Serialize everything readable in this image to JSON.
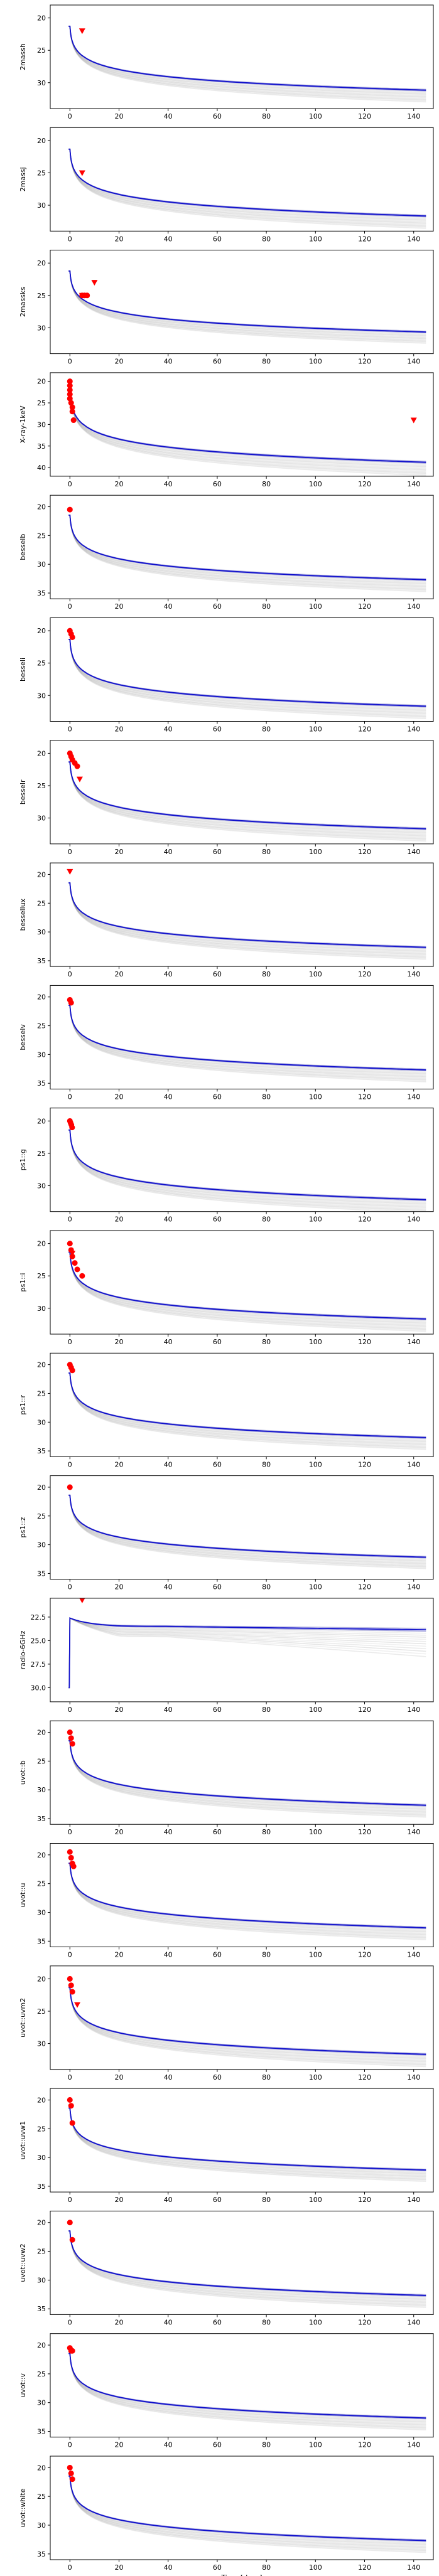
{
  "colors": {
    "main": "#1010cc",
    "band": "#7a7ad8",
    "sample": "#808080",
    "obs": "#ff0000"
  },
  "chart_data": [
    {
      "type": "line",
      "ylabel": "2massh",
      "ylim": [
        34,
        18
      ],
      "yticks": [
        20,
        25,
        30
      ],
      "xlim": [
        -8,
        148
      ],
      "xticks": [
        0,
        20,
        40,
        60,
        80,
        100,
        120,
        140
      ],
      "xlabel": "",
      "model": {
        "peak": 20.0,
        "late": 31.0,
        "ln": "log"
      },
      "obs": [
        {
          "x": 5,
          "y": 22,
          "marker": "v"
        }
      ]
    },
    {
      "type": "line",
      "ylabel": "2massj",
      "ylim": [
        34,
        18
      ],
      "yticks": [
        20,
        25,
        30
      ],
      "xlim": [
        -8,
        148
      ],
      "xticks": [
        0,
        20,
        40,
        60,
        80,
        100,
        120,
        140
      ],
      "xlabel": "",
      "model": {
        "peak": 20.0,
        "late": 31.5,
        "ln": "log"
      },
      "obs": [
        {
          "x": 5,
          "y": 25,
          "marker": "v"
        }
      ]
    },
    {
      "type": "line",
      "ylabel": "2massks",
      "ylim": [
        34,
        18
      ],
      "yticks": [
        20,
        25,
        30
      ],
      "xlim": [
        -8,
        148
      ],
      "xticks": [
        0,
        20,
        40,
        60,
        80,
        100,
        120,
        140
      ],
      "xlabel": "",
      "model": {
        "peak": 20.0,
        "late": 30.5,
        "ln": "log"
      },
      "obs": [
        {
          "x": 5,
          "y": 25,
          "marker": "o"
        },
        {
          "x": 6,
          "y": 25,
          "marker": "o"
        },
        {
          "x": 7,
          "y": 25,
          "marker": "o"
        },
        {
          "x": 10,
          "y": 23,
          "marker": "v"
        },
        {
          "x": 5,
          "y": 25,
          "marker": "v"
        }
      ]
    },
    {
      "type": "line",
      "ylabel": "X-ray-1keV",
      "ylim": [
        42,
        18
      ],
      "yticks": [
        20,
        25,
        30,
        35,
        40
      ],
      "xlim": [
        -8,
        148
      ],
      "xticks": [
        0,
        20,
        40,
        60,
        80,
        100,
        120,
        140
      ],
      "xlabel": "",
      "model": {
        "peak": 20.0,
        "late": 38.5,
        "ln": "log"
      },
      "obs": [
        {
          "x": 0,
          "y": 20,
          "marker": "o"
        },
        {
          "x": 0,
          "y": 21,
          "marker": "o"
        },
        {
          "x": 0,
          "y": 22,
          "marker": "o"
        },
        {
          "x": 0,
          "y": 23,
          "marker": "o"
        },
        {
          "x": 0,
          "y": 24,
          "marker": "o"
        },
        {
          "x": 0.5,
          "y": 25,
          "marker": "o"
        },
        {
          "x": 1,
          "y": 26,
          "marker": "o"
        },
        {
          "x": 1,
          "y": 27,
          "marker": "o"
        },
        {
          "x": 1.5,
          "y": 29,
          "marker": "o"
        },
        {
          "x": 140,
          "y": 29,
          "marker": "v"
        }
      ]
    },
    {
      "type": "line",
      "ylabel": "besselb",
      "ylim": [
        36,
        18
      ],
      "yticks": [
        20,
        25,
        30,
        35
      ],
      "xlim": [
        -8,
        148
      ],
      "xticks": [
        0,
        20,
        40,
        60,
        80,
        100,
        120,
        140
      ],
      "xlabel": "",
      "model": {
        "peak": 20.0,
        "late": 32.5,
        "ln": "log"
      },
      "obs": [
        {
          "x": 0,
          "y": 20.5,
          "marker": "o"
        }
      ]
    },
    {
      "type": "line",
      "ylabel": "besseli",
      "ylim": [
        34,
        18
      ],
      "yticks": [
        20,
        25,
        30
      ],
      "xlim": [
        -8,
        148
      ],
      "xticks": [
        0,
        20,
        40,
        60,
        80,
        100,
        120,
        140
      ],
      "xlabel": "",
      "model": {
        "peak": 20.0,
        "late": 31.5,
        "ln": "log"
      },
      "obs": [
        {
          "x": 0,
          "y": 20,
          "marker": "o"
        },
        {
          "x": 0.5,
          "y": 20.5,
          "marker": "o"
        },
        {
          "x": 1,
          "y": 21,
          "marker": "o"
        }
      ]
    },
    {
      "type": "line",
      "ylabel": "besselr",
      "ylim": [
        34,
        18
      ],
      "yticks": [
        20,
        25,
        30
      ],
      "xlim": [
        -8,
        148
      ],
      "xticks": [
        0,
        20,
        40,
        60,
        80,
        100,
        120,
        140
      ],
      "xlabel": "",
      "model": {
        "peak": 20.0,
        "late": 31.5,
        "ln": "log"
      },
      "obs": [
        {
          "x": 0,
          "y": 20,
          "marker": "o"
        },
        {
          "x": 0.5,
          "y": 20.5,
          "marker": "o"
        },
        {
          "x": 1,
          "y": 21,
          "marker": "o"
        },
        {
          "x": 2,
          "y": 21.5,
          "marker": "o"
        },
        {
          "x": 3,
          "y": 22,
          "marker": "o"
        },
        {
          "x": 4,
          "y": 24,
          "marker": "v"
        }
      ]
    },
    {
      "type": "line",
      "ylabel": "bessellux",
      "ylim": [
        36,
        18
      ],
      "yticks": [
        20,
        25,
        30,
        35
      ],
      "xlim": [
        -8,
        148
      ],
      "xticks": [
        0,
        20,
        40,
        60,
        80,
        100,
        120,
        140
      ],
      "xlabel": "",
      "model": {
        "peak": 20.0,
        "late": 32.5,
        "ln": "log"
      },
      "obs": [
        {
          "x": 0,
          "y": 19.5,
          "marker": "v"
        }
      ]
    },
    {
      "type": "line",
      "ylabel": "besselv",
      "ylim": [
        36,
        18
      ],
      "yticks": [
        20,
        25,
        30,
        35
      ],
      "xlim": [
        -8,
        148
      ],
      "xticks": [
        0,
        20,
        40,
        60,
        80,
        100,
        120,
        140
      ],
      "xlabel": "",
      "model": {
        "peak": 20.0,
        "late": 32.5,
        "ln": "log"
      },
      "obs": [
        {
          "x": 0,
          "y": 20.5,
          "marker": "o"
        },
        {
          "x": 0.5,
          "y": 21,
          "marker": "o"
        }
      ]
    },
    {
      "type": "line",
      "ylabel": "ps1::g",
      "ylim": [
        34,
        18
      ],
      "yticks": [
        20,
        25,
        30
      ],
      "xlim": [
        -8,
        148
      ],
      "xticks": [
        0,
        20,
        40,
        60,
        80,
        100,
        120,
        140
      ],
      "xlabel": "",
      "model": {
        "peak": 20.0,
        "late": 32.0,
        "ln": "log"
      },
      "obs": [
        {
          "x": 0,
          "y": 20,
          "marker": "o"
        },
        {
          "x": 0.3,
          "y": 20.3,
          "marker": "o"
        },
        {
          "x": 0.6,
          "y": 20.6,
          "marker": "o"
        },
        {
          "x": 0.9,
          "y": 21,
          "marker": "o"
        }
      ]
    },
    {
      "type": "line",
      "ylabel": "ps1::i",
      "ylim": [
        34,
        18
      ],
      "yticks": [
        20,
        25,
        30
      ],
      "xlim": [
        -8,
        148
      ],
      "xticks": [
        0,
        20,
        40,
        60,
        80,
        100,
        120,
        140
      ],
      "xlabel": "",
      "model": {
        "peak": 20.0,
        "late": 31.5,
        "ln": "log"
      },
      "obs": [
        {
          "x": 0,
          "y": 20,
          "marker": "o"
        },
        {
          "x": 0.5,
          "y": 21,
          "marker": "o"
        },
        {
          "x": 1,
          "y": 22,
          "marker": "o"
        },
        {
          "x": 2,
          "y": 23,
          "marker": "o"
        },
        {
          "x": 3,
          "y": 24,
          "marker": "o"
        },
        {
          "x": 5,
          "y": 25,
          "marker": "o"
        },
        {
          "x": 1,
          "y": 21.5,
          "marker": "v"
        }
      ]
    },
    {
      "type": "line",
      "ylabel": "ps1::r",
      "ylim": [
        36,
        18
      ],
      "yticks": [
        20,
        25,
        30,
        35
      ],
      "xlim": [
        -8,
        148
      ],
      "xticks": [
        0,
        20,
        40,
        60,
        80,
        100,
        120,
        140
      ],
      "xlabel": "",
      "model": {
        "peak": 20.0,
        "late": 32.5,
        "ln": "log"
      },
      "obs": [
        {
          "x": 0,
          "y": 20,
          "marker": "o"
        },
        {
          "x": 0.5,
          "y": 20.5,
          "marker": "o"
        },
        {
          "x": 1,
          "y": 21,
          "marker": "o"
        }
      ]
    },
    {
      "type": "line",
      "ylabel": "ps1::z",
      "ylim": [
        36,
        18
      ],
      "yticks": [
        20,
        25,
        30,
        35
      ],
      "xlim": [
        -8,
        148
      ],
      "xticks": [
        0,
        20,
        40,
        60,
        80,
        100,
        120,
        140
      ],
      "xlabel": "",
      "model": {
        "peak": 20.0,
        "late": 32.0,
        "ln": "log"
      },
      "obs": [
        {
          "x": 0,
          "y": 20,
          "marker": "o"
        }
      ]
    },
    {
      "type": "line",
      "ylabel": "radio-6GHz",
      "ylim": [
        31.5,
        20.5
      ],
      "yticks": [
        22.5,
        25.0,
        27.5,
        30.0
      ],
      "ytickfmt": 1,
      "xlim": [
        -8,
        148
      ],
      "xticks": [
        0,
        20,
        40,
        60,
        80,
        100,
        120,
        140
      ],
      "xlabel": "",
      "model": {
        "peak": 23.4,
        "late": 23.0,
        "ln": "radio"
      },
      "obs": [
        {
          "x": 5,
          "y": 20.7,
          "marker": "v"
        }
      ]
    },
    {
      "type": "line",
      "ylabel": "uvot::b",
      "ylim": [
        36,
        18
      ],
      "yticks": [
        20,
        25,
        30,
        35
      ],
      "xlim": [
        -8,
        148
      ],
      "xticks": [
        0,
        20,
        40,
        60,
        80,
        100,
        120,
        140
      ],
      "xlabel": "",
      "model": {
        "peak": 20.0,
        "late": 32.5,
        "ln": "log"
      },
      "obs": [
        {
          "x": 0,
          "y": 20,
          "marker": "o"
        },
        {
          "x": 0.5,
          "y": 21,
          "marker": "o"
        },
        {
          "x": 1,
          "y": 22,
          "marker": "o"
        }
      ]
    },
    {
      "type": "line",
      "ylabel": "uvot::u",
      "ylim": [
        36,
        18
      ],
      "yticks": [
        20,
        25,
        30,
        35
      ],
      "xlim": [
        -8,
        148
      ],
      "xticks": [
        0,
        20,
        40,
        60,
        80,
        100,
        120,
        140
      ],
      "xlabel": "",
      "model": {
        "peak": 20.0,
        "late": 32.5,
        "ln": "log"
      },
      "obs": [
        {
          "x": 0,
          "y": 19.5,
          "marker": "o"
        },
        {
          "x": 0.5,
          "y": 20.5,
          "marker": "o"
        },
        {
          "x": 1,
          "y": 21.5,
          "marker": "o"
        },
        {
          "x": 1.5,
          "y": 22,
          "marker": "o"
        }
      ]
    },
    {
      "type": "line",
      "ylabel": "uvot::uvm2",
      "ylim": [
        34,
        18
      ],
      "yticks": [
        20,
        25,
        30
      ],
      "xlim": [
        -8,
        148
      ],
      "xticks": [
        0,
        20,
        40,
        60,
        80,
        100,
        120,
        140
      ],
      "xlabel": "",
      "model": {
        "peak": 20.0,
        "late": 31.5,
        "ln": "log"
      },
      "obs": [
        {
          "x": 0,
          "y": 20,
          "marker": "o"
        },
        {
          "x": 0.5,
          "y": 21,
          "marker": "o"
        },
        {
          "x": 1,
          "y": 22,
          "marker": "o"
        },
        {
          "x": 3,
          "y": 24,
          "marker": "v"
        }
      ]
    },
    {
      "type": "line",
      "ylabel": "uvot::uvw1",
      "ylim": [
        36,
        18
      ],
      "yticks": [
        20,
        25,
        30,
        35
      ],
      "xlim": [
        -8,
        148
      ],
      "xticks": [
        0,
        20,
        40,
        60,
        80,
        100,
        120,
        140
      ],
      "xlabel": "",
      "model": {
        "peak": 20.0,
        "late": 32.0,
        "ln": "log"
      },
      "obs": [
        {
          "x": 0,
          "y": 20,
          "marker": "o"
        },
        {
          "x": 0.5,
          "y": 21,
          "marker": "o"
        },
        {
          "x": 1,
          "y": 24,
          "marker": "o"
        }
      ]
    },
    {
      "type": "line",
      "ylabel": "uvot::uvw2",
      "ylim": [
        36,
        18
      ],
      "yticks": [
        20,
        25,
        30,
        35
      ],
      "xlim": [
        -8,
        148
      ],
      "xticks": [
        0,
        20,
        40,
        60,
        80,
        100,
        120,
        140
      ],
      "xlabel": "",
      "model": {
        "peak": 20.0,
        "late": 32.5,
        "ln": "log"
      },
      "obs": [
        {
          "x": 0,
          "y": 20,
          "marker": "o"
        },
        {
          "x": 1,
          "y": 23,
          "marker": "o"
        }
      ]
    },
    {
      "type": "line",
      "ylabel": "uvot::v",
      "ylim": [
        36,
        18
      ],
      "yticks": [
        20,
        25,
        30,
        35
      ],
      "xlim": [
        -8,
        148
      ],
      "xticks": [
        0,
        20,
        40,
        60,
        80,
        100,
        120,
        140
      ],
      "xlabel": "",
      "model": {
        "peak": 20.0,
        "late": 32.5,
        "ln": "log"
      },
      "obs": [
        {
          "x": 0,
          "y": 20.5,
          "marker": "o"
        },
        {
          "x": 0.5,
          "y": 21,
          "marker": "o"
        },
        {
          "x": 1,
          "y": 21,
          "marker": "o"
        }
      ]
    },
    {
      "type": "line",
      "ylabel": "uvot::white",
      "ylim": [
        36,
        18
      ],
      "yticks": [
        20,
        25,
        30,
        35
      ],
      "xlim": [
        -8,
        148
      ],
      "xticks": [
        0,
        20,
        40,
        60,
        80,
        100,
        120,
        140
      ],
      "xlabel": "Time [days]",
      "model": {
        "peak": 20.0,
        "late": 32.5,
        "ln": "log"
      },
      "obs": [
        {
          "x": 0,
          "y": 20,
          "marker": "o"
        },
        {
          "x": 0.5,
          "y": 21,
          "marker": "o"
        },
        {
          "x": 1,
          "y": 22,
          "marker": "o"
        }
      ]
    }
  ]
}
